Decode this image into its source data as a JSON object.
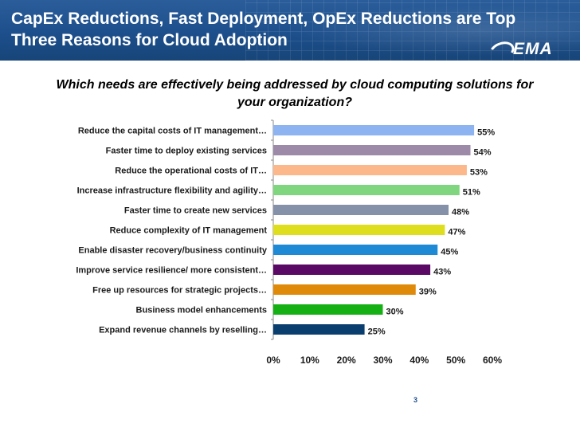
{
  "slide": {
    "title": "CapEx Reductions, Fast Deployment, OpEx Reductions are Top Three Reasons for Cloud Adoption",
    "logo": "EMA",
    "question": "Which needs are effectively being addressed by cloud computing solutions for your organization?",
    "page_number": "3"
  },
  "chart_data": {
    "type": "bar",
    "orientation": "horizontal",
    "title": "Which needs are effectively being addressed by cloud computing solutions for your organization?",
    "categories": [
      "Reduce the capital costs of IT management…",
      "Faster time to deploy existing services",
      "Reduce the operational costs of IT…",
      "Increase infrastructure flexibility and agility…",
      "Faster time to create new services",
      "Reduce complexity of IT management",
      "Enable disaster recovery/business continuity",
      "Improve service resilience/ more consistent…",
      "Free up resources for strategic projects…",
      "Business model enhancements",
      "Expand revenue channels by reselling…"
    ],
    "values": [
      55,
      54,
      53,
      51,
      48,
      47,
      45,
      43,
      39,
      30,
      25
    ],
    "data_labels": [
      "55%",
      "54%",
      "53%",
      "51%",
      "48%",
      "47%",
      "45%",
      "43%",
      "39%",
      "30%",
      "25%"
    ],
    "colors": [
      "#8db4f0",
      "#9c8aa8",
      "#fcb88a",
      "#7fd67f",
      "#8591a8",
      "#dede1e",
      "#1e8ad6",
      "#5a0a64",
      "#e08a0a",
      "#14b014",
      "#0a3e6e"
    ],
    "xlim": [
      0,
      60
    ],
    "xticks": [
      0,
      10,
      20,
      30,
      40,
      50,
      60
    ],
    "xtick_labels": [
      "0%",
      "10%",
      "20%",
      "30%",
      "40%",
      "50%",
      "60%"
    ],
    "xlabel": "",
    "ylabel": ""
  }
}
